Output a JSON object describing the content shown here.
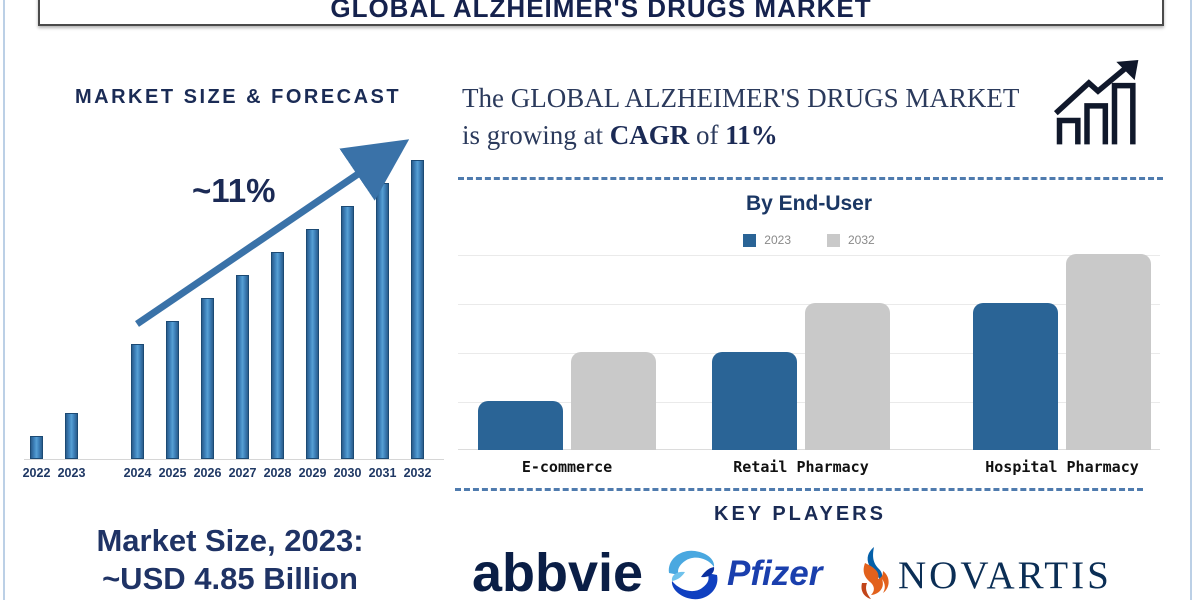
{
  "page": {
    "title": "GLOBAL ALZHEIMER'S DRUGS MARKET"
  },
  "left_panel": {
    "heading": "MARKET SIZE & FORECAST",
    "growth_annotation": "~11%",
    "market_size_line1": "Market Size, 2023:",
    "market_size_line2": "~USD 4.85 Billion"
  },
  "right_panel": {
    "cagr_line1": "The GLOBAL ALZHEIMER'S DRUGS MARKET",
    "cagr_prefix": "is growing at ",
    "cagr_bold1": "CAGR",
    "cagr_mid": " of ",
    "cagr_bold2": "11%",
    "key_players_title": "KEY PLAYERS",
    "players": [
      "abbvie",
      "Pfizer",
      "NOVARTIS"
    ]
  },
  "colors": {
    "navy_text": "#1a2b55",
    "bar_blue": "#2a6496",
    "bar_gray": "#c9c9c9",
    "dash_blue": "#4f7bae",
    "novartis_orange": "#e2611c",
    "pfizer_light_blue": "#4aa8e0",
    "pfizer_dark_blue": "#1040c0"
  },
  "chart_data": [
    {
      "id": "market-size-forecast",
      "type": "bar",
      "title": "MARKET SIZE & FORECAST",
      "categories": [
        "2022",
        "2023",
        "2024",
        "2025",
        "2026",
        "2027",
        "2028",
        "2029",
        "2030",
        "2031",
        "2032"
      ],
      "values": [
        1,
        2,
        5,
        6,
        7,
        8,
        9,
        10,
        11,
        12,
        13
      ],
      "ylabel": "",
      "xlabel": "",
      "value_scale": "relative units (no y-axis shown)",
      "annotation": "~11% growth arrow from 2024 to 2032",
      "layout_hint": "gap between historical (2022-2023) and forecast (2024-2032) bars, no gridlines"
    },
    {
      "id": "by-end-user",
      "type": "bar",
      "title": "By End-User",
      "categories": [
        "E-commerce",
        "Retail Pharmacy",
        "Hospital Pharmacy"
      ],
      "series": [
        {
          "name": "2023",
          "color": "#2a6496",
          "values": [
            1,
            2,
            3
          ]
        },
        {
          "name": "2032",
          "color": "#c9c9c9",
          "values": [
            2,
            3,
            4
          ]
        }
      ],
      "value_scale": "relative units (no y-axis shown)",
      "legend_position": "top",
      "grid": true
    }
  ]
}
